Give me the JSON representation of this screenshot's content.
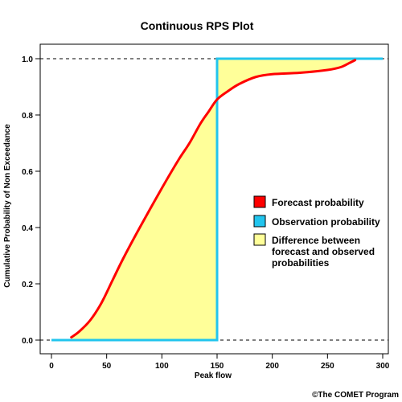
{
  "chart_data": {
    "type": "line",
    "title": "Continuous RPS Plot",
    "xlabel": "Peak flow",
    "ylabel": "Cumulative Probability of Non Exceedance",
    "xlim": [
      0,
      300
    ],
    "ylim": [
      0,
      1
    ],
    "x_ticks": [
      "0",
      "50",
      "100",
      "150",
      "200",
      "250",
      "300"
    ],
    "y_ticks": [
      "0.0",
      "0.2",
      "0.4",
      "0.6",
      "0.8",
      "1.0"
    ],
    "x_tick_values": [
      0,
      50,
      100,
      150,
      200,
      250,
      300
    ],
    "y_tick_values": [
      0,
      0.2,
      0.4,
      0.6,
      0.8,
      1.0
    ],
    "reference_lines_y": [
      0,
      1
    ],
    "grid": false,
    "legend_position": "right",
    "series": [
      {
        "name": "Forecast probability",
        "color": "#ff0000",
        "x": [
          18,
          25,
          35,
          45,
          55,
          65,
          80,
          100,
          115,
          125,
          135,
          142,
          150,
          160,
          170,
          185,
          200,
          225,
          250,
          262,
          270,
          275
        ],
        "y": [
          0.01,
          0.03,
          0.07,
          0.13,
          0.21,
          0.29,
          0.4,
          0.54,
          0.64,
          0.7,
          0.77,
          0.81,
          0.855,
          0.885,
          0.91,
          0.935,
          0.945,
          0.95,
          0.96,
          0.97,
          0.985,
          0.995
        ]
      },
      {
        "name": "Observation probability",
        "color": "#22c5ee",
        "x": [
          0,
          150,
          150,
          300
        ],
        "y": [
          0,
          0,
          1,
          1
        ]
      }
    ],
    "legend": [
      {
        "label": "Forecast probability",
        "color": "#ff0000"
      },
      {
        "label": "Observation probability",
        "color": "#22c5ee"
      },
      {
        "label": "Difference between\nforecast and observed\nprobabilities",
        "color": "#ffff99"
      }
    ],
    "fill_color": "#ffff99",
    "credit": "©The COMET Program"
  }
}
